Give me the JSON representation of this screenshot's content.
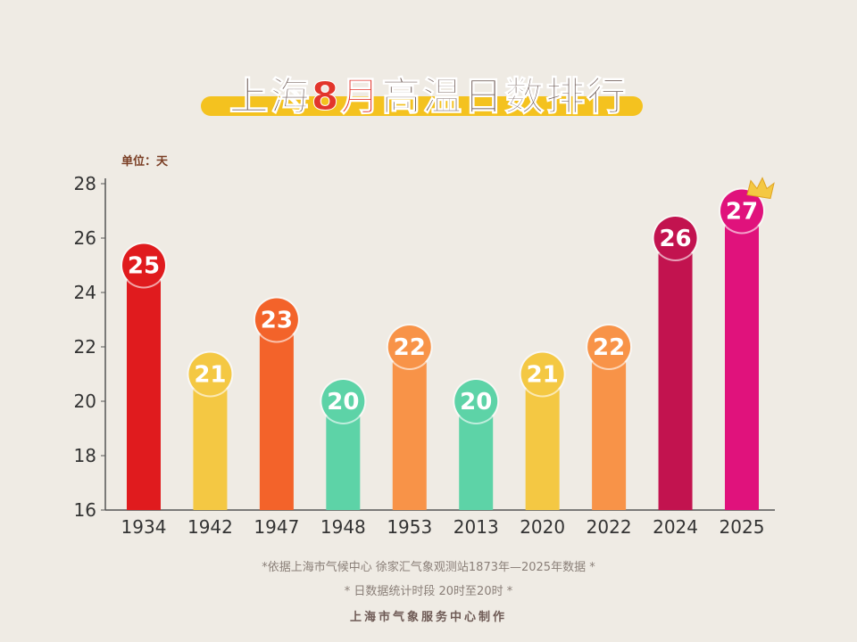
{
  "title": {
    "prefix": "上海",
    "highlight": "8月",
    "suffix": "高温日数排行"
  },
  "footer": {
    "source": "*依据上海市气候中心 徐家汇气象观测站1873年—2025年数据 *",
    "period": "* 日数据统计时段 20时至20时 *",
    "credit": "上海市气象服务中心制作"
  },
  "chart_data": {
    "type": "bar",
    "title": "上海8月高温日数排行",
    "unit_label": "单位：天",
    "categories": [
      "1934",
      "1942",
      "1947",
      "1948",
      "1953",
      "2013",
      "2020",
      "2022",
      "2024",
      "2025"
    ],
    "values": [
      25,
      21,
      23,
      20,
      22,
      20,
      21,
      22,
      26,
      27
    ],
    "colors": [
      "#e01b1e",
      "#f4c843",
      "#f3632a",
      "#5dd3a7",
      "#f89348",
      "#5dd3a7",
      "#f4c843",
      "#f89348",
      "#c2134f",
      "#e0127c"
    ],
    "ylim": [
      16,
      28
    ],
    "yticks": [
      16,
      18,
      20,
      22,
      24,
      26,
      28
    ],
    "grid": false,
    "data_labels": true
  }
}
